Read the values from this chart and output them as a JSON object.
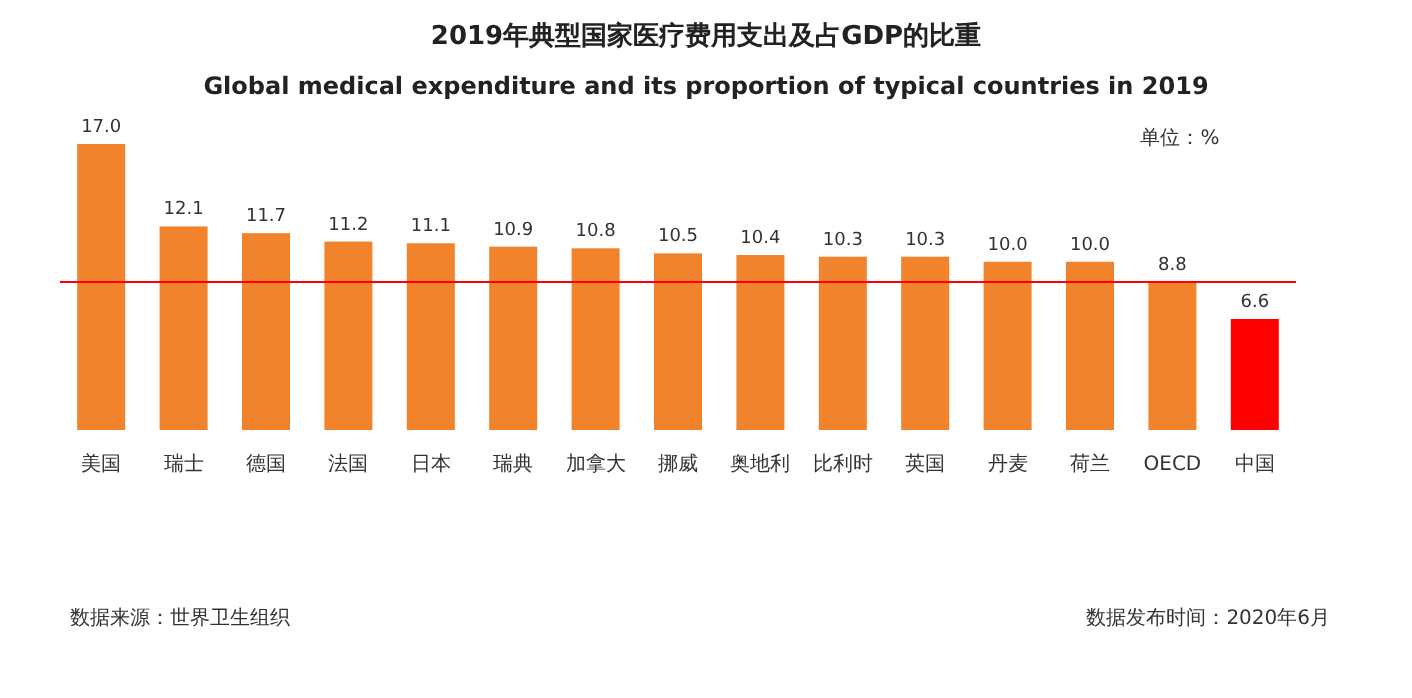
{
  "chart_data": {
    "type": "bar",
    "title": "2019年典型国家医疗费用支出及占GDP的比重",
    "subtitle": "Global medical expenditure and its proportion of typical countries in 2019",
    "categories": [
      "美国",
      "瑞士",
      "德国",
      "法国",
      "日本",
      "瑞典",
      "加拿大",
      "挪威",
      "奥地利",
      "比利时",
      "英国",
      "丹麦",
      "荷兰",
      "OECD",
      "中国"
    ],
    "values": [
      17.0,
      12.1,
      11.7,
      11.2,
      11.1,
      10.9,
      10.8,
      10.5,
      10.4,
      10.3,
      10.3,
      10.0,
      10.0,
      8.8,
      6.6
    ],
    "value_labels": [
      "17.0",
      "12.1",
      "11.7",
      "11.2",
      "11.1",
      "10.9",
      "10.8",
      "10.5",
      "10.4",
      "10.3",
      "10.3",
      "10.0",
      "10.0",
      "8.8",
      "6.6"
    ],
    "colors": [
      "#f0832b",
      "#f0832b",
      "#f0832b",
      "#f0832b",
      "#f0832b",
      "#f0832b",
      "#f0832b",
      "#f0832b",
      "#f0832b",
      "#f0832b",
      "#f0832b",
      "#f0832b",
      "#f0832b",
      "#f0832b",
      "#ff0000"
    ],
    "ref_lines": [
      {
        "axis": "y",
        "value": 8.8,
        "color": "#ff0000"
      }
    ],
    "annotations": [
      "单位：%",
      "数据来源：世界卫生组织",
      "数据发布时间：2020年6月"
    ]
  }
}
